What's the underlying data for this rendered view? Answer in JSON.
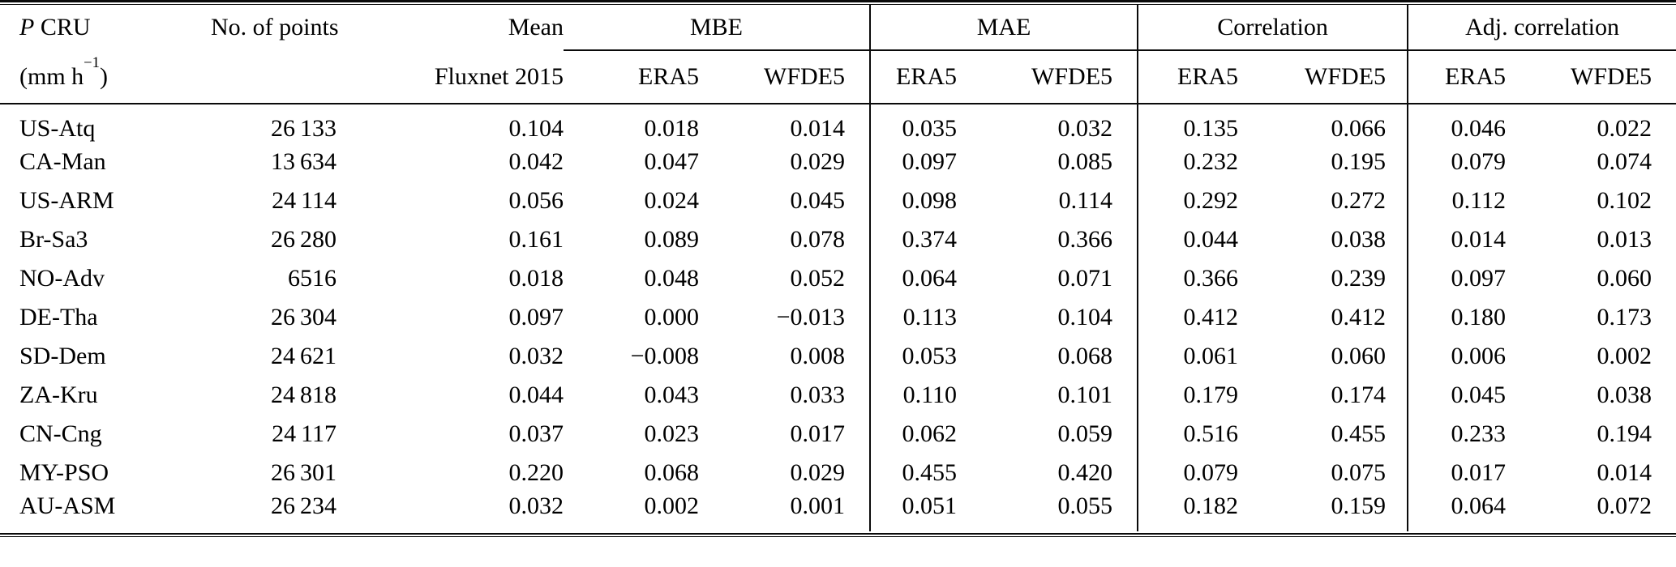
{
  "table": {
    "header": {
      "site": {
        "line1_var": "P",
        "line1_rest": " CRU",
        "line2_pre": "(mm h",
        "line2_sup": "−1",
        "line2_post": ")"
      },
      "points_label": "No. of points",
      "mean_label": "Mean",
      "mean_sublabel": "Fluxnet 2015",
      "groups": [
        {
          "label": "MBE",
          "sub1": "ERA5",
          "sub2": "WFDE5"
        },
        {
          "label": "MAE",
          "sub1": "ERA5",
          "sub2": "WFDE5"
        },
        {
          "label": "Correlation",
          "sub1": "ERA5",
          "sub2": "WFDE5"
        },
        {
          "label": "Adj. correlation",
          "sub1": "ERA5",
          "sub2": "WFDE5"
        }
      ]
    },
    "rows": [
      {
        "site": "US-Atq",
        "points": "26 133",
        "mean": "0.104",
        "mbe_era5": "0.018",
        "mbe_wfde5": "0.014",
        "mae_era5": "0.035",
        "mae_wfde5": "0.032",
        "corr_era5": "0.135",
        "corr_wfde5": "0.066",
        "adj_era5": "0.046",
        "adj_wfde5": "0.022"
      },
      {
        "site": "CA-Man",
        "points": "13 634",
        "mean": "0.042",
        "mbe_era5": "0.047",
        "mbe_wfde5": "0.029",
        "mae_era5": "0.097",
        "mae_wfde5": "0.085",
        "corr_era5": "0.232",
        "corr_wfde5": "0.195",
        "adj_era5": "0.079",
        "adj_wfde5": "0.074"
      },
      {
        "site": "US-ARM",
        "points": "24 114",
        "mean": "0.056",
        "mbe_era5": "0.024",
        "mbe_wfde5": "0.045",
        "mae_era5": "0.098",
        "mae_wfde5": "0.114",
        "corr_era5": "0.292",
        "corr_wfde5": "0.272",
        "adj_era5": "0.112",
        "adj_wfde5": "0.102"
      },
      {
        "site": "Br-Sa3",
        "points": "26 280",
        "mean": "0.161",
        "mbe_era5": "0.089",
        "mbe_wfde5": "0.078",
        "mae_era5": "0.374",
        "mae_wfde5": "0.366",
        "corr_era5": "0.044",
        "corr_wfde5": "0.038",
        "adj_era5": "0.014",
        "adj_wfde5": "0.013"
      },
      {
        "site": "NO-Adv",
        "points": "6516",
        "mean": "0.018",
        "mbe_era5": "0.048",
        "mbe_wfde5": "0.052",
        "mae_era5": "0.064",
        "mae_wfde5": "0.071",
        "corr_era5": "0.366",
        "corr_wfde5": "0.239",
        "adj_era5": "0.097",
        "adj_wfde5": "0.060"
      },
      {
        "site": "DE-Tha",
        "points": "26 304",
        "mean": "0.097",
        "mbe_era5": "0.000",
        "mbe_wfde5": "−0.013",
        "mae_era5": "0.113",
        "mae_wfde5": "0.104",
        "corr_era5": "0.412",
        "corr_wfde5": "0.412",
        "adj_era5": "0.180",
        "adj_wfde5": "0.173"
      },
      {
        "site": "SD-Dem",
        "points": "24 621",
        "mean": "0.032",
        "mbe_era5": "−0.008",
        "mbe_wfde5": "0.008",
        "mae_era5": "0.053",
        "mae_wfde5": "0.068",
        "corr_era5": "0.061",
        "corr_wfde5": "0.060",
        "adj_era5": "0.006",
        "adj_wfde5": "0.002"
      },
      {
        "site": "ZA-Kru",
        "points": "24 818",
        "mean": "0.044",
        "mbe_era5": "0.043",
        "mbe_wfde5": "0.033",
        "mae_era5": "0.110",
        "mae_wfde5": "0.101",
        "corr_era5": "0.179",
        "corr_wfde5": "0.174",
        "adj_era5": "0.045",
        "adj_wfde5": "0.038"
      },
      {
        "site": "CN-Cng",
        "points": "24 117",
        "mean": "0.037",
        "mbe_era5": "0.023",
        "mbe_wfde5": "0.017",
        "mae_era5": "0.062",
        "mae_wfde5": "0.059",
        "corr_era5": "0.516",
        "corr_wfde5": "0.455",
        "adj_era5": "0.233",
        "adj_wfde5": "0.194"
      },
      {
        "site": "MY-PSO",
        "points": "26 301",
        "mean": "0.220",
        "mbe_era5": "0.068",
        "mbe_wfde5": "0.029",
        "mae_era5": "0.455",
        "mae_wfde5": "0.420",
        "corr_era5": "0.079",
        "corr_wfde5": "0.075",
        "adj_era5": "0.017",
        "adj_wfde5": "0.014"
      },
      {
        "site": "AU-ASM",
        "points": "26 234",
        "mean": "0.032",
        "mbe_era5": "0.002",
        "mbe_wfde5": "0.001",
        "mae_era5": "0.051",
        "mae_wfde5": "0.055",
        "corr_era5": "0.182",
        "corr_wfde5": "0.159",
        "adj_era5": "0.064",
        "adj_wfde5": "0.072"
      }
    ]
  }
}
